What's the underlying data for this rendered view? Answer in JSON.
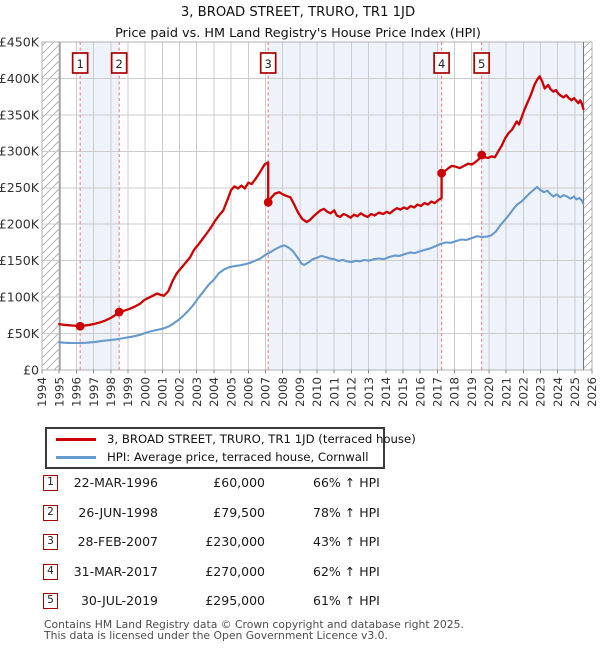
{
  "chart_data": {
    "type": "line",
    "title": "3, BROAD STREET, TRURO, TR1 1JD",
    "subtitle": "Price paid vs. HM Land Registry's House Price Index (HPI)",
    "unit": "GBP thousands",
    "xlim": [
      1994,
      2026
    ],
    "ylim": [
      0,
      450
    ],
    "grid": true,
    "legend_position": "below",
    "x_ticks": [
      1994,
      1995,
      1996,
      1997,
      1998,
      1999,
      2000,
      2001,
      2002,
      2003,
      2004,
      2005,
      2006,
      2007,
      2008,
      2009,
      2010,
      2011,
      2012,
      2013,
      2014,
      2015,
      2016,
      2017,
      2018,
      2019,
      2020,
      2021,
      2022,
      2023,
      2024,
      2025,
      2026
    ],
    "y_ticks": [
      {
        "v": 0,
        "label": "£0"
      },
      {
        "v": 50,
        "label": "£50K"
      },
      {
        "v": 100,
        "label": "£100K"
      },
      {
        "v": 150,
        "label": "£150K"
      },
      {
        "v": 200,
        "label": "£200K"
      },
      {
        "v": 250,
        "label": "£250K"
      },
      {
        "v": 300,
        "label": "£300K"
      },
      {
        "v": 350,
        "label": "£350K"
      },
      {
        "v": 400,
        "label": "£400K"
      },
      {
        "v": 450,
        "label": "£450K"
      }
    ],
    "colors": {
      "price_line": "#cc0000",
      "hpi_line": "#6699cc",
      "sale_dashed": "#ee8888",
      "marker_box_border": "#aa0000",
      "owned_band": "#eef2fb",
      "grid": "#cccccc",
      "plot_border": "#b0b0b0",
      "edge_line": "#777777",
      "hatch": "#b3b3b3",
      "axis_text": "#333333",
      "tick": "#888888"
    },
    "owned_bands": [
      [
        1996.22,
        1998.49
      ],
      [
        2007.16,
        2017.25
      ],
      [
        2019.58,
        2025.5
      ]
    ],
    "no_data_hatch": [
      [
        1994,
        1995.05
      ],
      [
        2025.5,
        2026
      ]
    ],
    "sale_markers": [
      {
        "num": "1",
        "x": 1996.22,
        "y": 60
      },
      {
        "num": "2",
        "x": 1998.49,
        "y": 79.5
      },
      {
        "num": "3",
        "x": 2007.16,
        "y": 230
      },
      {
        "num": "4",
        "x": 2017.25,
        "y": 270
      },
      {
        "num": "5",
        "x": 2019.58,
        "y": 295
      }
    ],
    "series": [
      {
        "name": "3, BROAD STREET, TRURO, TR1 1JD (terraced house)",
        "color": "#cc0000",
        "points": [
          [
            1995.0,
            63
          ],
          [
            1995.25,
            62
          ],
          [
            1995.5,
            61.5
          ],
          [
            1995.75,
            61
          ],
          [
            1996.0,
            60.5
          ],
          [
            1996.22,
            60
          ],
          [
            1996.5,
            61
          ],
          [
            1996.8,
            62
          ],
          [
            1997.1,
            63.5
          ],
          [
            1997.4,
            65.5
          ],
          [
            1997.7,
            68
          ],
          [
            1998.0,
            71.5
          ],
          [
            1998.25,
            75
          ],
          [
            1998.49,
            79.5
          ],
          [
            1998.8,
            81.5
          ],
          [
            1999.1,
            84
          ],
          [
            1999.4,
            87
          ],
          [
            1999.7,
            91
          ],
          [
            1999.95,
            96
          ],
          [
            2000.2,
            99
          ],
          [
            2000.45,
            102
          ],
          [
            2000.7,
            105
          ],
          [
            2000.9,
            103
          ],
          [
            2001.1,
            102
          ],
          [
            2001.35,
            108
          ],
          [
            2001.6,
            122
          ],
          [
            2001.85,
            133
          ],
          [
            2002.1,
            140
          ],
          [
            2002.35,
            147
          ],
          [
            2002.6,
            154
          ],
          [
            2002.85,
            165
          ],
          [
            2003.1,
            172
          ],
          [
            2003.35,
            180
          ],
          [
            2003.6,
            188
          ],
          [
            2003.85,
            196
          ],
          [
            2004.05,
            204
          ],
          [
            2004.3,
            212
          ],
          [
            2004.55,
            219
          ],
          [
            2004.8,
            234
          ],
          [
            2005.0,
            247
          ],
          [
            2005.2,
            252
          ],
          [
            2005.4,
            249
          ],
          [
            2005.6,
            253
          ],
          [
            2005.8,
            249
          ],
          [
            2006.0,
            257
          ],
          [
            2006.2,
            255
          ],
          [
            2006.45,
            263
          ],
          [
            2006.7,
            272
          ],
          [
            2006.95,
            282
          ],
          [
            2007.16,
            285
          ],
          [
            2007.16,
            230
          ],
          [
            2007.35,
            237
          ],
          [
            2007.55,
            242
          ],
          [
            2007.8,
            244
          ],
          [
            2008.0,
            241
          ],
          [
            2008.2,
            239
          ],
          [
            2008.45,
            237
          ],
          [
            2008.65,
            228
          ],
          [
            2008.9,
            216
          ],
          [
            2009.15,
            207
          ],
          [
            2009.4,
            203
          ],
          [
            2009.6,
            206
          ],
          [
            2009.8,
            211
          ],
          [
            2010.0,
            215
          ],
          [
            2010.2,
            219
          ],
          [
            2010.4,
            221
          ],
          [
            2010.6,
            217
          ],
          [
            2010.8,
            215
          ],
          [
            2011.0,
            219
          ],
          [
            2011.15,
            212
          ],
          [
            2011.35,
            210
          ],
          [
            2011.55,
            214
          ],
          [
            2011.75,
            212
          ],
          [
            2011.95,
            209
          ],
          [
            2012.15,
            213
          ],
          [
            2012.35,
            211
          ],
          [
            2012.55,
            215
          ],
          [
            2012.75,
            212
          ],
          [
            2012.95,
            210
          ],
          [
            2013.15,
            214
          ],
          [
            2013.35,
            212
          ],
          [
            2013.6,
            216
          ],
          [
            2013.85,
            214
          ],
          [
            2014.05,
            217
          ],
          [
            2014.25,
            215
          ],
          [
            2014.45,
            219
          ],
          [
            2014.65,
            222
          ],
          [
            2014.85,
            220
          ],
          [
            2015.05,
            223
          ],
          [
            2015.25,
            221
          ],
          [
            2015.45,
            225
          ],
          [
            2015.65,
            223
          ],
          [
            2015.85,
            227
          ],
          [
            2016.05,
            225
          ],
          [
            2016.25,
            229
          ],
          [
            2016.45,
            227
          ],
          [
            2016.65,
            231
          ],
          [
            2016.85,
            229
          ],
          [
            2017.05,
            233
          ],
          [
            2017.25,
            236
          ],
          [
            2017.25,
            270
          ],
          [
            2017.45,
            273
          ],
          [
            2017.65,
            277
          ],
          [
            2017.85,
            280
          ],
          [
            2018.05,
            279
          ],
          [
            2018.3,
            277
          ],
          [
            2018.55,
            280
          ],
          [
            2018.8,
            283
          ],
          [
            2019.0,
            282
          ],
          [
            2019.2,
            285
          ],
          [
            2019.4,
            289
          ],
          [
            2019.58,
            295
          ],
          [
            2019.75,
            292
          ],
          [
            2019.95,
            291
          ],
          [
            2020.15,
            293
          ],
          [
            2020.35,
            292
          ],
          [
            2020.55,
            300
          ],
          [
            2020.75,
            308
          ],
          [
            2020.95,
            318
          ],
          [
            2021.15,
            325
          ],
          [
            2021.35,
            330
          ],
          [
            2021.5,
            336
          ],
          [
            2021.62,
            341
          ],
          [
            2021.75,
            337
          ],
          [
            2021.9,
            346
          ],
          [
            2022.05,
            356
          ],
          [
            2022.25,
            367
          ],
          [
            2022.45,
            378
          ],
          [
            2022.65,
            391
          ],
          [
            2022.8,
            398
          ],
          [
            2022.95,
            403
          ],
          [
            2023.1,
            396
          ],
          [
            2023.25,
            386
          ],
          [
            2023.45,
            391
          ],
          [
            2023.6,
            385
          ],
          [
            2023.75,
            382
          ],
          [
            2023.9,
            384
          ],
          [
            2024.05,
            379
          ],
          [
            2024.2,
            376
          ],
          [
            2024.35,
            374
          ],
          [
            2024.5,
            377
          ],
          [
            2024.65,
            373
          ],
          [
            2024.8,
            370
          ],
          [
            2024.95,
            373
          ],
          [
            2025.1,
            369
          ],
          [
            2025.2,
            366
          ],
          [
            2025.32,
            370
          ],
          [
            2025.42,
            365
          ],
          [
            2025.5,
            358
          ]
        ]
      },
      {
        "name": "HPI: Average price, terraced house, Cornwall",
        "color": "#6699cc",
        "points": [
          [
            1995.0,
            38
          ],
          [
            1995.3,
            37.5
          ],
          [
            1995.6,
            37.2
          ],
          [
            1995.9,
            37
          ],
          [
            1996.2,
            37
          ],
          [
            1996.5,
            37.3
          ],
          [
            1996.8,
            37.8
          ],
          [
            1997.1,
            38.5
          ],
          [
            1997.4,
            39.5
          ],
          [
            1997.7,
            40.5
          ],
          [
            1998.0,
            41.2
          ],
          [
            1998.3,
            42
          ],
          [
            1998.6,
            43.2
          ],
          [
            1998.9,
            44.5
          ],
          [
            1999.2,
            45.5
          ],
          [
            1999.5,
            47
          ],
          [
            1999.8,
            49
          ],
          [
            2000.1,
            51.5
          ],
          [
            2000.4,
            53.5
          ],
          [
            2000.7,
            55
          ],
          [
            2001.0,
            56.5
          ],
          [
            2001.3,
            59
          ],
          [
            2001.6,
            63
          ],
          [
            2001.9,
            68
          ],
          [
            2002.2,
            74
          ],
          [
            2002.5,
            81
          ],
          [
            2002.8,
            89
          ],
          [
            2003.1,
            99
          ],
          [
            2003.4,
            108
          ],
          [
            2003.7,
            117
          ],
          [
            2004.0,
            124
          ],
          [
            2004.3,
            133
          ],
          [
            2004.6,
            138
          ],
          [
            2004.9,
            141
          ],
          [
            2005.2,
            142.5
          ],
          [
            2005.5,
            143.5
          ],
          [
            2005.8,
            145
          ],
          [
            2006.1,
            147
          ],
          [
            2006.4,
            150
          ],
          [
            2006.7,
            153
          ],
          [
            2007.0,
            158
          ],
          [
            2007.3,
            162
          ],
          [
            2007.6,
            166
          ],
          [
            2007.85,
            169
          ],
          [
            2008.1,
            171
          ],
          [
            2008.35,
            168
          ],
          [
            2008.6,
            163
          ],
          [
            2008.85,
            155
          ],
          [
            2009.1,
            146
          ],
          [
            2009.25,
            144
          ],
          [
            2009.5,
            147.5
          ],
          [
            2009.75,
            152
          ],
          [
            2010.0,
            154
          ],
          [
            2010.25,
            156.5
          ],
          [
            2010.5,
            155
          ],
          [
            2010.75,
            153
          ],
          [
            2011.0,
            152
          ],
          [
            2011.25,
            149.5
          ],
          [
            2011.5,
            151
          ],
          [
            2011.75,
            149
          ],
          [
            2012.0,
            148
          ],
          [
            2012.25,
            150
          ],
          [
            2012.5,
            149
          ],
          [
            2012.75,
            151
          ],
          [
            2013.0,
            150
          ],
          [
            2013.3,
            152
          ],
          [
            2013.6,
            153
          ],
          [
            2013.9,
            152
          ],
          [
            2014.2,
            155
          ],
          [
            2014.5,
            157
          ],
          [
            2014.8,
            156.5
          ],
          [
            2015.1,
            159
          ],
          [
            2015.4,
            161
          ],
          [
            2015.7,
            160.5
          ],
          [
            2016.0,
            163
          ],
          [
            2016.3,
            165
          ],
          [
            2016.6,
            167
          ],
          [
            2016.9,
            170
          ],
          [
            2017.2,
            173
          ],
          [
            2017.5,
            175
          ],
          [
            2017.8,
            174.5
          ],
          [
            2018.1,
            177
          ],
          [
            2018.4,
            179
          ],
          [
            2018.7,
            178.5
          ],
          [
            2019.0,
            181
          ],
          [
            2019.3,
            183.5
          ],
          [
            2019.6,
            182.5
          ],
          [
            2019.9,
            183
          ],
          [
            2020.15,
            185
          ],
          [
            2020.4,
            190
          ],
          [
            2020.65,
            198
          ],
          [
            2020.9,
            205
          ],
          [
            2021.15,
            212
          ],
          [
            2021.4,
            220
          ],
          [
            2021.65,
            227
          ],
          [
            2021.9,
            231
          ],
          [
            2022.15,
            237
          ],
          [
            2022.4,
            243
          ],
          [
            2022.6,
            247
          ],
          [
            2022.8,
            251
          ],
          [
            2023.0,
            247
          ],
          [
            2023.2,
            244
          ],
          [
            2023.4,
            246
          ],
          [
            2023.55,
            242
          ],
          [
            2023.75,
            238
          ],
          [
            2023.95,
            241
          ],
          [
            2024.15,
            237
          ],
          [
            2024.35,
            240
          ],
          [
            2024.55,
            238
          ],
          [
            2024.75,
            235
          ],
          [
            2024.95,
            238
          ],
          [
            2025.1,
            234
          ],
          [
            2025.25,
            236
          ],
          [
            2025.4,
            233
          ],
          [
            2025.5,
            228
          ]
        ]
      }
    ]
  },
  "table": {
    "rows": [
      {
        "num": "1",
        "date": "22-MAR-1996",
        "price": "£60,000",
        "pct": "66% ↑ HPI"
      },
      {
        "num": "2",
        "date": "26-JUN-1998",
        "price": "£79,500",
        "pct": "78% ↑ HPI"
      },
      {
        "num": "3",
        "date": "28-FEB-2007",
        "price": "£230,000",
        "pct": "43% ↑ HPI"
      },
      {
        "num": "4",
        "date": "31-MAR-2017",
        "price": "£270,000",
        "pct": "62% ↑ HPI"
      },
      {
        "num": "5",
        "date": "30-JUL-2019",
        "price": "£295,000",
        "pct": "61% ↑ HPI"
      }
    ]
  },
  "footer": {
    "line1": "Contains HM Land Registry data © Crown copyright and database right 2025.",
    "line2": "This data is licensed under the Open Government Licence v3.0."
  }
}
